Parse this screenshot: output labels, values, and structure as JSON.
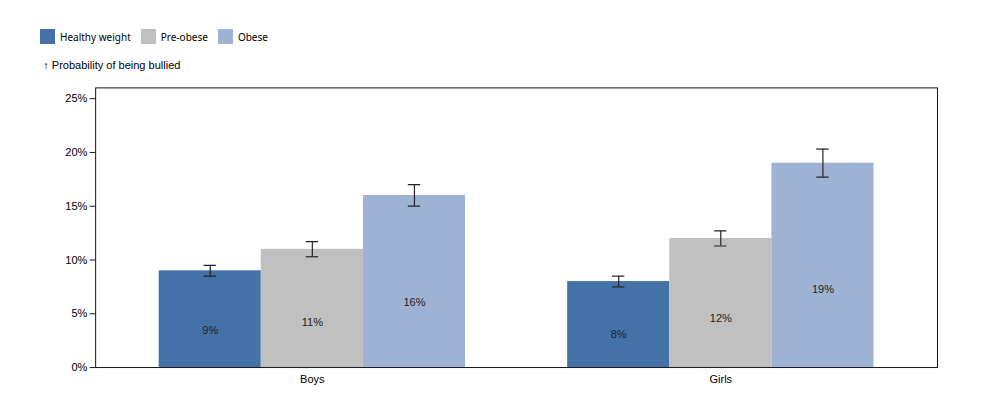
{
  "chart_data": {
    "type": "bar",
    "ylabel": "Probability of being bullied",
    "categories": [
      "Boys",
      "Girls"
    ],
    "series": [
      {
        "name": "Healthy weight",
        "color": "#4472a8",
        "values": [
          9,
          8
        ],
        "errors": [
          0.5,
          0.5
        ],
        "value_labels": [
          "9%",
          "8%"
        ]
      },
      {
        "name": "Pre-obese",
        "color": "#c0c0c0",
        "values": [
          11,
          12
        ],
        "errors": [
          0.7,
          0.7
        ],
        "value_labels": [
          "11%",
          "12%"
        ]
      },
      {
        "name": "Obese",
        "color": "#9eb3d4",
        "values": [
          16,
          19
        ],
        "errors": [
          1.0,
          1.3
        ],
        "value_labels": [
          "16%",
          "19%"
        ]
      }
    ],
    "ylim": [
      0,
      26
    ],
    "yticks": [
      {
        "value": 0,
        "label": "0%"
      },
      {
        "value": 5,
        "label": "5%"
      },
      {
        "value": 10,
        "label": "10%"
      },
      {
        "value": 15,
        "label": "15%"
      },
      {
        "value": 20,
        "label": "20%"
      },
      {
        "value": 25,
        "label": "25%"
      }
    ],
    "grid": false,
    "legend": "top",
    "data_labels": true
  }
}
